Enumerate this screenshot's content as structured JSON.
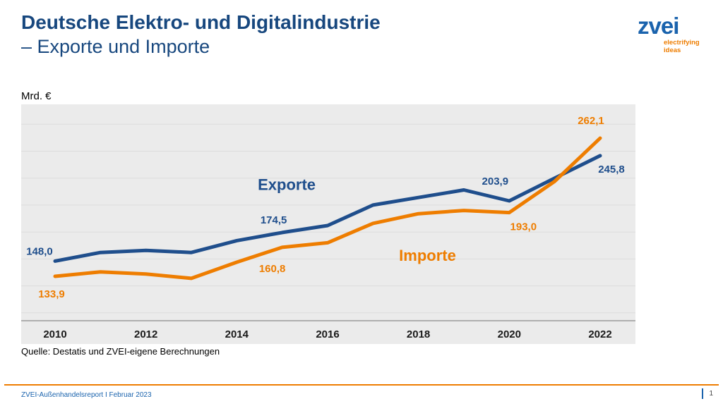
{
  "header": {
    "title_line1": "Deutsche Elektro- und Digitalindustrie",
    "title_line2": "– Exporte und Importe",
    "logo": {
      "text": "zvei",
      "tagline_line1": "electrifying",
      "tagline_line2": "ideas"
    }
  },
  "chart": {
    "unit_label": "Mrd. €",
    "source": "Quelle: Destatis und ZVEI-eigene Berechnungen"
  },
  "footer": {
    "report_label": "ZVEI-Außenhandelsreport I Februar 2023",
    "page_number": "1"
  },
  "colors": {
    "exporte_blue": "#1f4e8c",
    "importe_orange": "#ee7d00",
    "title_blue": "#17477e",
    "chart_background": "#ebebeb"
  },
  "chart_data": {
    "type": "line",
    "title": "Deutsche Elektro- und Digitalindustrie – Exporte und Importe",
    "ylabel": "Mrd. €",
    "xlabel": "",
    "grid": true,
    "legend_position": "inline-annotations",
    "ylim": [
      93,
      293
    ],
    "gridline_values": [
      100,
      125,
      150,
      175,
      200,
      225,
      250,
      275
    ],
    "x": [
      2010,
      2011,
      2012,
      2013,
      2014,
      2015,
      2016,
      2017,
      2018,
      2019,
      2020,
      2021,
      2022
    ],
    "x_tick_labels": [
      "2010",
      "2012",
      "2014",
      "2016",
      "2018",
      "2020",
      "2022"
    ],
    "series": [
      {
        "name": "Exporte",
        "color": "#1f4e8c",
        "values": [
          148.0,
          156,
          158,
          156,
          167,
          174.5,
          181,
          200,
          207,
          214,
          203.9,
          225,
          245.8
        ]
      },
      {
        "name": "Importe",
        "color": "#ee7d00",
        "values": [
          133.9,
          138,
          136,
          132,
          147,
          160.8,
          165,
          183,
          192,
          195,
          193.0,
          222,
          262.1
        ]
      }
    ],
    "point_labels": [
      {
        "series": "Exporte",
        "x": 2010,
        "text": "148,0",
        "offset": [
          -22,
          -9
        ]
      },
      {
        "series": "Importe",
        "x": 2010,
        "text": "133,9",
        "offset": [
          -5,
          30
        ]
      },
      {
        "series": "Exporte",
        "x": 2015,
        "text": "174,5",
        "offset": [
          -12,
          -13
        ]
      },
      {
        "series": "Importe",
        "x": 2015,
        "text": "160,8",
        "offset": [
          -14,
          35
        ]
      },
      {
        "series": "Exporte",
        "x": 2020,
        "text": "203,9",
        "offset": [
          -20,
          -23
        ]
      },
      {
        "series": "Importe",
        "x": 2020,
        "text": "193,0",
        "offset": [
          20,
          25
        ]
      },
      {
        "series": "Importe",
        "x": 2022,
        "text": "262,1",
        "offset": [
          -13,
          -20
        ]
      },
      {
        "series": "Exporte",
        "x": 2022,
        "text": "245,8",
        "offset": [
          16,
          24
        ]
      }
    ],
    "annotations": [
      {
        "text": "Exporte",
        "at_x": 2015.1,
        "at_y": 214,
        "color": "#1f4e8c"
      },
      {
        "text": "Importe",
        "at_x": 2018.2,
        "at_y": 148.3,
        "color": "#ee7d00"
      }
    ]
  }
}
